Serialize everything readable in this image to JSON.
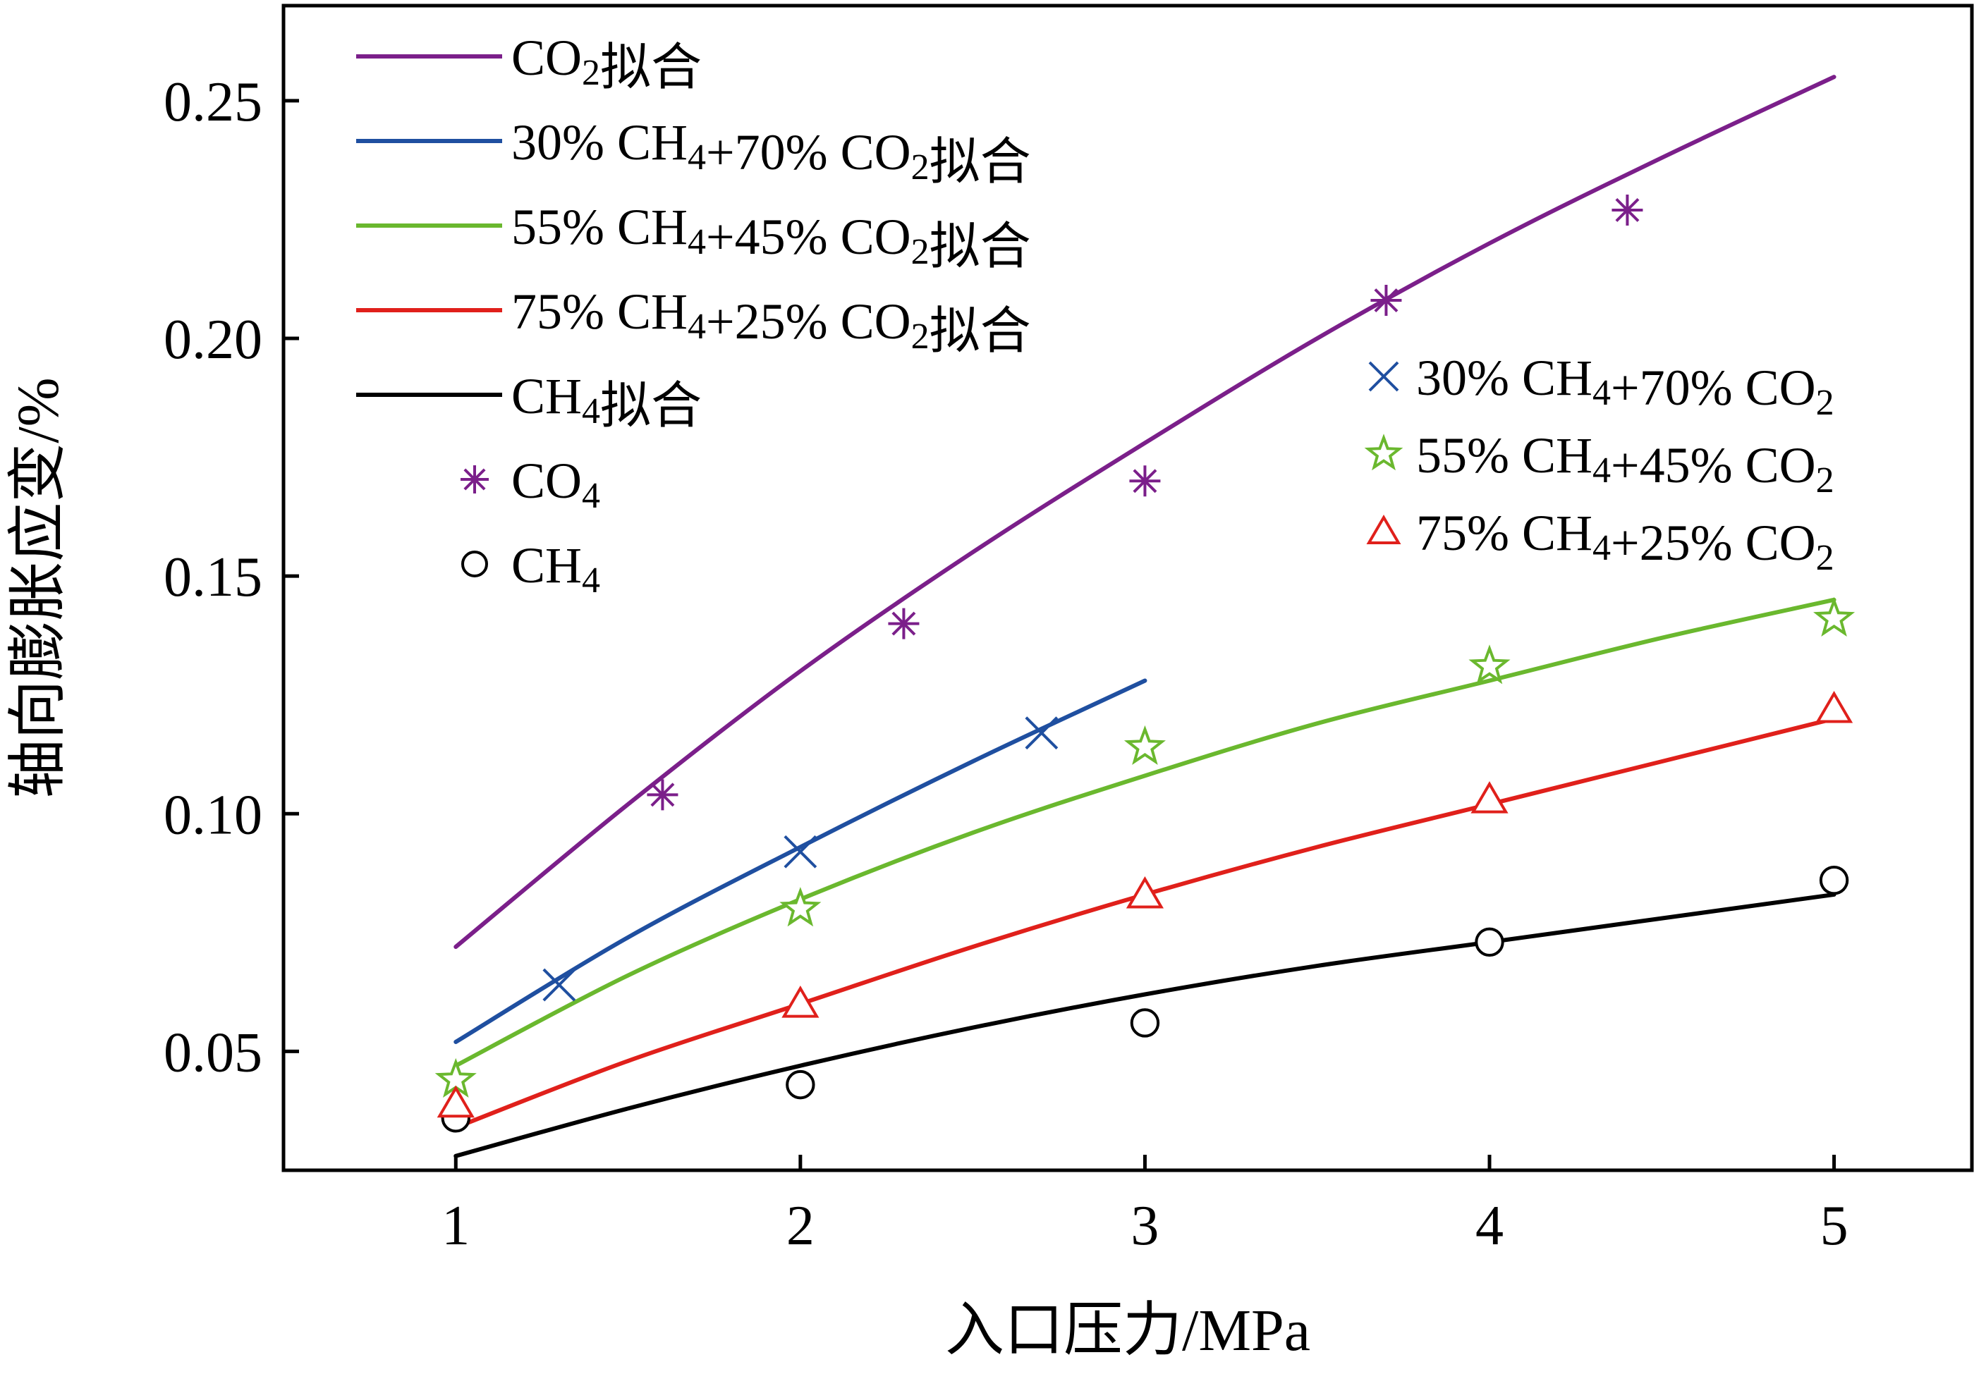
{
  "chart_data": {
    "type": "line",
    "title": "",
    "xlabel": "入口压力/MPa",
    "ylabel": "轴向膨胀应变/%",
    "xlim": [
      0.5,
      5.4
    ],
    "ylim": [
      0.025,
      0.27
    ],
    "x_ticks": [
      "1",
      "2",
      "3",
      "4",
      "5"
    ],
    "y_ticks": [
      "0.05",
      "0.10",
      "0.15",
      "0.20",
      "0.25"
    ],
    "grid": false,
    "fit_series": [
      {
        "name": "CO₂拟合",
        "color": "#7b1f8a",
        "x": [
          1.0,
          1.5,
          2.0,
          2.5,
          3.0,
          3.5,
          4.0,
          4.5,
          5.0
        ],
        "y": [
          0.072,
          0.102,
          0.13,
          0.155,
          0.178,
          0.2,
          0.22,
          0.238,
          0.255
        ]
      },
      {
        "name": "30% CH₄+70% CO₂拟合",
        "color": "#1f4fa0",
        "x": [
          1.0,
          1.5,
          2.0,
          2.5,
          3.0
        ],
        "y": [
          0.052,
          0.074,
          0.093,
          0.111,
          0.128
        ]
      },
      {
        "name": "55% CH₄+45% CO₂拟合",
        "color": "#6ab82e",
        "x": [
          1.0,
          1.5,
          2.0,
          2.5,
          3.0,
          3.5,
          4.0,
          4.5,
          5.0
        ],
        "y": [
          0.047,
          0.066,
          0.082,
          0.096,
          0.108,
          0.119,
          0.128,
          0.137,
          0.145
        ]
      },
      {
        "name": "75% CH₄+25% CO₂拟合",
        "color": "#e0201b",
        "x": [
          1.0,
          1.5,
          2.0,
          2.5,
          3.0,
          3.5,
          4.0,
          4.5,
          5.0
        ],
        "y": [
          0.034,
          0.048,
          0.06,
          0.072,
          0.083,
          0.093,
          0.102,
          0.111,
          0.12
        ]
      },
      {
        "name": "CH₄拟合",
        "color": "#000000",
        "x": [
          1.0,
          1.5,
          2.0,
          2.5,
          3.0,
          3.5,
          4.0,
          4.5,
          5.0
        ],
        "y": [
          0.028,
          0.038,
          0.047,
          0.055,
          0.062,
          0.068,
          0.073,
          0.078,
          0.083
        ]
      }
    ],
    "marker_series": [
      {
        "name": "CO₄",
        "marker": "asterisk",
        "color": "#7b1f8a",
        "x": [
          1.6,
          2.3,
          3.0,
          3.7,
          4.4
        ],
        "y": [
          0.104,
          0.14,
          0.17,
          0.208,
          0.227
        ]
      },
      {
        "name": "CH₄",
        "marker": "circle",
        "color": "#000000",
        "x": [
          1.0,
          2.0,
          3.0,
          4.0,
          5.0
        ],
        "y": [
          0.036,
          0.043,
          0.056,
          0.073,
          0.086
        ]
      },
      {
        "name": "30% CH₄+70% CO₂",
        "marker": "x",
        "color": "#1f4fa0",
        "x": [
          1.3,
          2.0,
          2.7
        ],
        "y": [
          0.064,
          0.092,
          0.117
        ]
      },
      {
        "name": "55% CH₄+45% CO₂",
        "marker": "star",
        "color": "#6ab82e",
        "x": [
          1.0,
          2.0,
          3.0,
          4.0,
          5.0
        ],
        "y": [
          0.044,
          0.08,
          0.114,
          0.131,
          0.141
        ]
      },
      {
        "name": "75% CH₄+25% CO₂",
        "marker": "triangle",
        "color": "#e0201b",
        "x": [
          1.0,
          2.0,
          3.0,
          4.0,
          5.0
        ],
        "y": [
          0.039,
          0.06,
          0.083,
          0.103,
          0.122
        ]
      }
    ],
    "legends": [
      "top-left",
      "right"
    ]
  }
}
